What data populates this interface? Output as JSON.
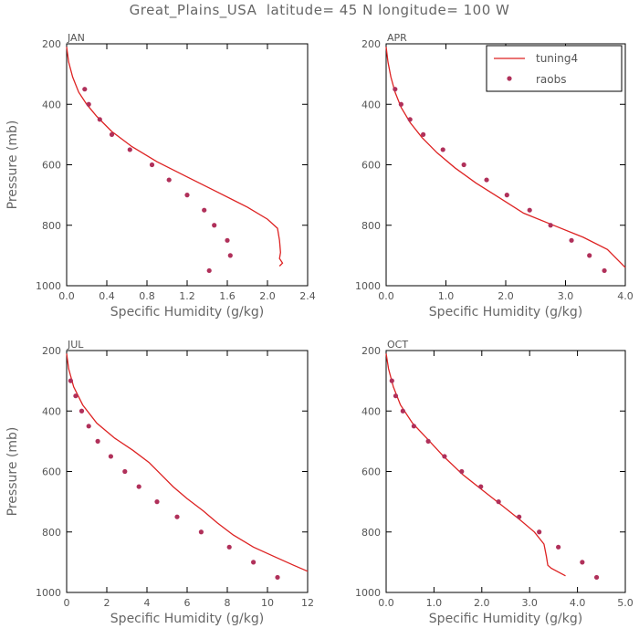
{
  "title": "Great_Plains_USA  latitude= 45 N longitude= 100 W",
  "ylabel": "Pressure (mb)",
  "xlabel": "Specific Humidity (g/kg)",
  "colors": {
    "model": "#dd2222",
    "obs": "#b0305a",
    "axis": "#000000"
  },
  "legend": {
    "model_label": "tuning4",
    "obs_label": "raobs",
    "location": "top-right of APR panel"
  },
  "chart_data": [
    {
      "type": "line",
      "panel": "JAN",
      "xlim": [
        0,
        2.4
      ],
      "xticks": [
        "0.0",
        "0.4",
        "0.8",
        "1.2",
        "1.6",
        "2.0",
        "2.4"
      ],
      "ylim": [
        200,
        1000
      ],
      "yticks": [
        "200",
        "400",
        "600",
        "800",
        "1000"
      ],
      "model": {
        "x": [
          0.0,
          0.02,
          0.06,
          0.12,
          0.2,
          0.3,
          0.45,
          0.65,
          0.9,
          1.2,
          1.5,
          1.8,
          2.0,
          2.1,
          2.12,
          2.13,
          2.12,
          2.15,
          2.12
        ],
        "p": [
          210,
          260,
          310,
          360,
          400,
          440,
          490,
          540,
          590,
          640,
          690,
          740,
          780,
          810,
          850,
          890,
          910,
          925,
          935
        ]
      },
      "obs": {
        "x": [
          0.18,
          0.22,
          0.33,
          0.45,
          0.63,
          0.85,
          1.02,
          1.2,
          1.37,
          1.47,
          1.6,
          1.63,
          1.42
        ],
        "p": [
          350,
          400,
          450,
          500,
          550,
          600,
          650,
          700,
          750,
          800,
          850,
          900,
          950
        ]
      }
    },
    {
      "type": "line",
      "panel": "APR",
      "xlim": [
        0,
        4.0
      ],
      "xticks": [
        "0.0",
        "1.0",
        "2.0",
        "3.0",
        "4.0"
      ],
      "ylim": [
        200,
        1000
      ],
      "yticks": [
        "200",
        "400",
        "600",
        "800",
        "1000"
      ],
      "model": {
        "x": [
          0.0,
          0.03,
          0.08,
          0.15,
          0.25,
          0.4,
          0.6,
          0.85,
          1.15,
          1.5,
          1.9,
          2.3,
          2.8,
          3.3,
          3.7,
          4.0
        ],
        "p": [
          210,
          260,
          310,
          360,
          410,
          460,
          510,
          560,
          610,
          660,
          710,
          760,
          800,
          840,
          880,
          940
        ]
      },
      "obs": {
        "x": [
          0.15,
          0.25,
          0.4,
          0.62,
          0.95,
          1.3,
          1.68,
          2.02,
          2.4,
          2.75,
          3.1,
          3.4,
          3.65
        ],
        "p": [
          350,
          400,
          450,
          500,
          550,
          600,
          650,
          700,
          750,
          800,
          850,
          900,
          950
        ]
      }
    },
    {
      "type": "line",
      "panel": "JUL",
      "xlim": [
        0,
        12
      ],
      "xticks": [
        "0",
        "2",
        "4",
        "6",
        "8",
        "10",
        "12"
      ],
      "ylim": [
        200,
        1000
      ],
      "yticks": [
        "200",
        "400",
        "600",
        "800",
        "1000"
      ],
      "model": {
        "x": [
          0.0,
          0.1,
          0.35,
          0.8,
          1.5,
          2.4,
          3.3,
          4.1,
          4.7,
          5.3,
          6.0,
          6.8,
          7.5,
          8.3,
          9.3,
          10.3,
          11.3,
          12.0
        ],
        "p": [
          210,
          260,
          320,
          380,
          440,
          490,
          530,
          570,
          610,
          650,
          690,
          730,
          770,
          810,
          850,
          880,
          910,
          930
        ]
      },
      "obs": {
        "x": [
          0.2,
          0.45,
          0.75,
          1.1,
          1.55,
          2.2,
          2.9,
          3.6,
          4.5,
          5.5,
          6.7,
          8.1,
          9.3,
          10.5
        ],
        "p": [
          300,
          350,
          400,
          450,
          500,
          550,
          600,
          650,
          700,
          750,
          800,
          850,
          900,
          950
        ]
      }
    },
    {
      "type": "line",
      "panel": "OCT",
      "xlim": [
        0,
        5.0
      ],
      "xticks": [
        "0.0",
        "1.0",
        "2.0",
        "3.0",
        "4.0",
        "5.0"
      ],
      "ylim": [
        200,
        1000
      ],
      "yticks": [
        "200",
        "400",
        "600",
        "800",
        "1000"
      ],
      "model": {
        "x": [
          0.0,
          0.05,
          0.15,
          0.3,
          0.55,
          0.85,
          1.2,
          1.6,
          2.0,
          2.4,
          2.8,
          3.1,
          3.3,
          3.35,
          3.38,
          3.45,
          3.75
        ],
        "p": [
          210,
          260,
          320,
          380,
          440,
          490,
          550,
          610,
          660,
          710,
          760,
          800,
          840,
          880,
          910,
          920,
          945
        ]
      },
      "obs": {
        "x": [
          0.12,
          0.2,
          0.35,
          0.58,
          0.88,
          1.22,
          1.58,
          1.98,
          2.35,
          2.78,
          3.2,
          3.6,
          4.1,
          4.4
        ],
        "p": [
          300,
          350,
          400,
          450,
          500,
          550,
          600,
          650,
          700,
          750,
          800,
          850,
          900,
          950
        ]
      }
    }
  ]
}
